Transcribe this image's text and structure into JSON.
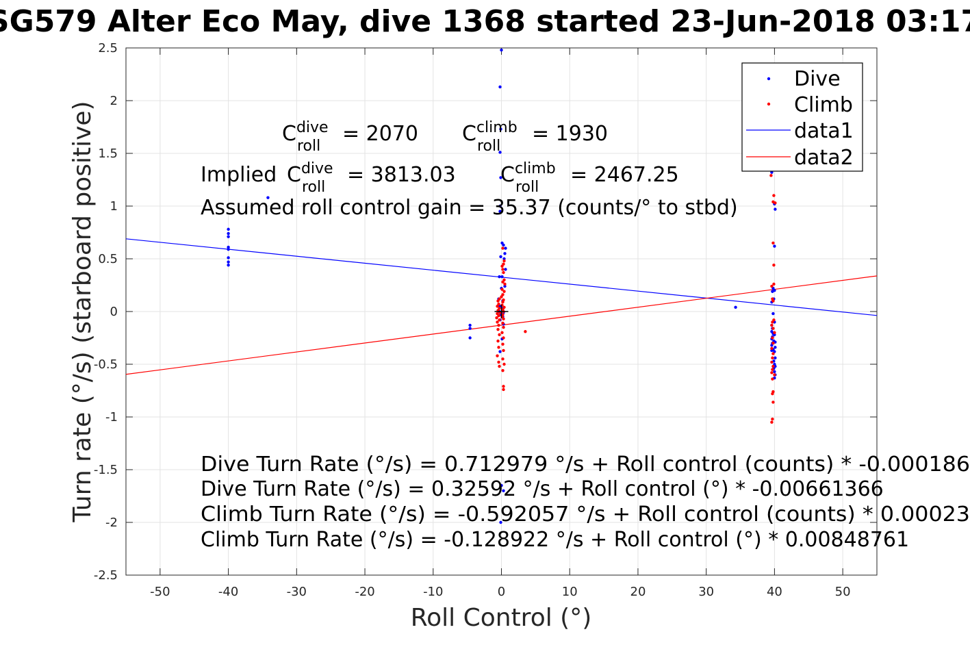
{
  "chart_data": {
    "type": "scatter",
    "title": "SG579 Alter Eco May, dive 1368 started 23-Jun-2018 03:17",
    "xlabel": "Roll Control (°)",
    "ylabel": "Turn rate (°/s) (starboard positive)",
    "xlim": [
      -55,
      55
    ],
    "ylim": [
      -2.5,
      2.5
    ],
    "grid": true,
    "legend_position": "top-right",
    "x_ticks": [
      -50,
      -40,
      -30,
      -20,
      -10,
      0,
      10,
      20,
      30,
      40,
      50
    ],
    "y_ticks": [
      2.5,
      2,
      1.5,
      1,
      0.5,
      0,
      -0.5,
      -1,
      -1.5,
      -2,
      -2.5
    ],
    "x_tick_labels": [
      "-50",
      "-40",
      "-30",
      "-20",
      "-10",
      "0",
      "10",
      "20",
      "30",
      "40",
      "50"
    ],
    "y_tick_labels": [
      "2.5",
      "2",
      "1.5",
      "1",
      "0.5",
      "0",
      "-0.5",
      "-1",
      "-1.5",
      "-2",
      "-2.5"
    ],
    "series": [
      {
        "name": "Dive",
        "kind": "points",
        "color": "#0000ff",
        "points": [
          [
            -40.0,
            0.78
          ],
          [
            -40.0,
            0.74
          ],
          [
            -40.0,
            0.71
          ],
          [
            -40.0,
            0.61
          ],
          [
            -40.0,
            0.59
          ],
          [
            -40.0,
            0.51
          ],
          [
            -40.0,
            0.47
          ],
          [
            -40.0,
            0.44
          ],
          [
            -34.2,
            1.08
          ],
          [
            -4.6,
            -0.13
          ],
          [
            -4.6,
            -0.16
          ],
          [
            -4.6,
            -0.25
          ],
          [
            0.0,
            2.48
          ],
          [
            -0.2,
            2.13
          ],
          [
            -0.1,
            1.73
          ],
          [
            -0.2,
            1.51
          ],
          [
            -0.1,
            1.27
          ],
          [
            -0.2,
            1.0
          ],
          [
            -0.2,
            0.95
          ],
          [
            0.1,
            0.65
          ],
          [
            0.3,
            0.63
          ],
          [
            0.6,
            0.6
          ],
          [
            0.5,
            0.55
          ],
          [
            -0.1,
            0.52
          ],
          [
            0.4,
            0.5
          ],
          [
            0.6,
            0.4
          ],
          [
            -0.3,
            0.33
          ],
          [
            0.1,
            0.33
          ],
          [
            0.5,
            0.24
          ],
          [
            0.0,
            0.22
          ],
          [
            -0.4,
            0.12
          ],
          [
            0.2,
            0.1
          ],
          [
            -0.2,
            0.05
          ],
          [
            0.2,
            0.03
          ],
          [
            -0.3,
            0.0
          ],
          [
            0.3,
            -0.01
          ],
          [
            -0.1,
            -0.03
          ],
          [
            0.2,
            -0.05
          ],
          [
            -0.2,
            -0.08
          ],
          [
            0.3,
            -0.12
          ],
          [
            0.1,
            -0.26
          ],
          [
            -0.2,
            -0.38
          ],
          [
            0.0,
            -1.65
          ],
          [
            0.3,
            -1.7
          ],
          [
            -0.1,
            -2.0
          ],
          [
            34.3,
            0.04
          ],
          [
            39.6,
            1.32
          ],
          [
            40.0,
            1.02
          ],
          [
            40.1,
            0.97
          ],
          [
            40.0,
            0.62
          ],
          [
            39.8,
            0.22
          ],
          [
            40.0,
            0.2
          ],
          [
            39.7,
            0.19
          ],
          [
            39.9,
            0.12
          ],
          [
            39.6,
            0.09
          ],
          [
            39.8,
            -0.02
          ],
          [
            40.0,
            -0.1
          ],
          [
            39.6,
            -0.13
          ],
          [
            39.7,
            -0.16
          ],
          [
            39.6,
            -0.19
          ],
          [
            39.8,
            -0.21
          ],
          [
            40.0,
            -0.22
          ],
          [
            39.7,
            -0.24
          ],
          [
            39.6,
            -0.26
          ],
          [
            39.9,
            -0.28
          ],
          [
            40.1,
            -0.29
          ],
          [
            39.7,
            -0.3
          ],
          [
            39.6,
            -0.32
          ],
          [
            40.1,
            -0.34
          ],
          [
            39.8,
            -0.36
          ],
          [
            39.6,
            -0.37
          ],
          [
            40.0,
            -0.38
          ],
          [
            40.1,
            -0.44
          ],
          [
            39.9,
            -0.47
          ],
          [
            40.0,
            -0.5
          ],
          [
            40.1,
            -0.52
          ],
          [
            39.9,
            -0.54
          ],
          [
            40.0,
            -0.57
          ],
          [
            40.1,
            -0.6
          ],
          [
            40.0,
            -0.63
          ]
        ]
      },
      {
        "name": "Climb",
        "kind": "points",
        "color": "#ff0000",
        "points": [
          [
            0.2,
            0.6
          ],
          [
            0.4,
            0.48
          ],
          [
            0.3,
            0.45
          ],
          [
            0.1,
            0.43
          ],
          [
            0.2,
            0.4
          ],
          [
            0.3,
            0.37
          ],
          [
            0.4,
            0.3
          ],
          [
            0.2,
            0.28
          ],
          [
            0.5,
            0.26
          ],
          [
            0.1,
            0.21
          ],
          [
            0.4,
            0.19
          ],
          [
            0.2,
            0.16
          ],
          [
            0.0,
            0.14
          ],
          [
            -0.3,
            0.12
          ],
          [
            0.3,
            0.11
          ],
          [
            -0.5,
            0.1
          ],
          [
            0.2,
            0.09
          ],
          [
            -0.4,
            0.07
          ],
          [
            0.1,
            0.06
          ],
          [
            -0.6,
            0.05
          ],
          [
            0.4,
            0.04
          ],
          [
            -0.3,
            0.03
          ],
          [
            0.2,
            0.02
          ],
          [
            -0.5,
            0.01
          ],
          [
            0.3,
            0.0
          ],
          [
            -0.2,
            -0.01
          ],
          [
            -0.6,
            -0.02
          ],
          [
            0.2,
            -0.03
          ],
          [
            -0.4,
            -0.04
          ],
          [
            0.1,
            -0.05
          ],
          [
            -0.7,
            -0.06
          ],
          [
            0.3,
            -0.07
          ],
          [
            -0.3,
            -0.08
          ],
          [
            -0.6,
            -0.1
          ],
          [
            0.2,
            -0.11
          ],
          [
            -0.4,
            -0.13
          ],
          [
            0.3,
            -0.15
          ],
          [
            -0.5,
            -0.17
          ],
          [
            0.1,
            -0.2
          ],
          [
            -0.3,
            -0.22
          ],
          [
            0.3,
            -0.25
          ],
          [
            -0.5,
            -0.28
          ],
          [
            0.2,
            -0.31
          ],
          [
            -0.4,
            -0.34
          ],
          [
            0.3,
            -0.37
          ],
          [
            -0.6,
            -0.42
          ],
          [
            0.2,
            -0.45
          ],
          [
            -0.4,
            -0.48
          ],
          [
            0.4,
            -0.5
          ],
          [
            -0.3,
            -0.52
          ],
          [
            0.2,
            -0.56
          ],
          [
            0.3,
            -0.71
          ],
          [
            0.3,
            -0.74
          ],
          [
            3.5,
            -0.19
          ],
          [
            39.5,
            1.29
          ],
          [
            39.9,
            1.1
          ],
          [
            39.8,
            1.04
          ],
          [
            40.1,
            1.03
          ],
          [
            39.8,
            0.65
          ],
          [
            39.9,
            0.44
          ],
          [
            39.6,
            0.24
          ],
          [
            39.9,
            0.26
          ],
          [
            39.7,
            0.12
          ],
          [
            39.8,
            0.1
          ],
          [
            39.9,
            -0.08
          ],
          [
            39.7,
            -0.1
          ],
          [
            39.6,
            -0.13
          ],
          [
            39.8,
            -0.16
          ],
          [
            40.0,
            -0.2
          ],
          [
            39.7,
            -0.25
          ],
          [
            39.8,
            -0.3
          ],
          [
            39.6,
            -0.35
          ],
          [
            39.8,
            -0.4
          ],
          [
            39.7,
            -0.44
          ],
          [
            39.6,
            -0.48
          ],
          [
            39.8,
            -0.52
          ],
          [
            39.7,
            -0.55
          ],
          [
            39.6,
            -0.58
          ],
          [
            40.0,
            -0.6
          ],
          [
            39.7,
            -0.64
          ],
          [
            39.8,
            -0.76
          ],
          [
            39.7,
            -0.78
          ],
          [
            39.8,
            -0.86
          ],
          [
            39.7,
            -1.02
          ],
          [
            39.6,
            -1.05
          ]
        ]
      },
      {
        "name": "data1",
        "kind": "line",
        "color": "#0000ff",
        "intercept": 0.32592,
        "slope": -0.00661366
      },
      {
        "name": "data2",
        "kind": "line",
        "color": "#ff0000",
        "intercept": -0.128922,
        "slope": 0.00848761
      }
    ],
    "origin_marker_color": "#000000",
    "annotations": {
      "c_roll_dive": {
        "base": "C",
        "sup": "dive",
        "sub": "roll",
        "value": "= 2070"
      },
      "c_roll_climb": {
        "base": "C",
        "sup": "climb",
        "sub": "roll",
        "value": "= 1930"
      },
      "implied_dive": {
        "prefix": "Implied ",
        "base": "C",
        "sup": "dive",
        "sub": "roll",
        "value": "= 3813.03"
      },
      "implied_climb": {
        "base": "C",
        "sup": "climb",
        "sub": "roll",
        "value": "= 2467.25"
      },
      "gain": "Assumed roll control gain = 35.37 (counts/° to stbd)",
      "fits": [
        "Dive Turn Rate (°/s) = 0.712979 °/s + Roll control (counts) * -0.000186",
        "Dive Turn Rate (°/s) = 0.32592 °/s + Roll control (°) * -0.00661366",
        "Climb Turn Rate (°/s) = -0.592057 °/s + Roll control (counts) * 0.00023",
        "Climb Turn Rate (°/s) = -0.128922 °/s + Roll control (°) * 0.00848761"
      ]
    }
  }
}
